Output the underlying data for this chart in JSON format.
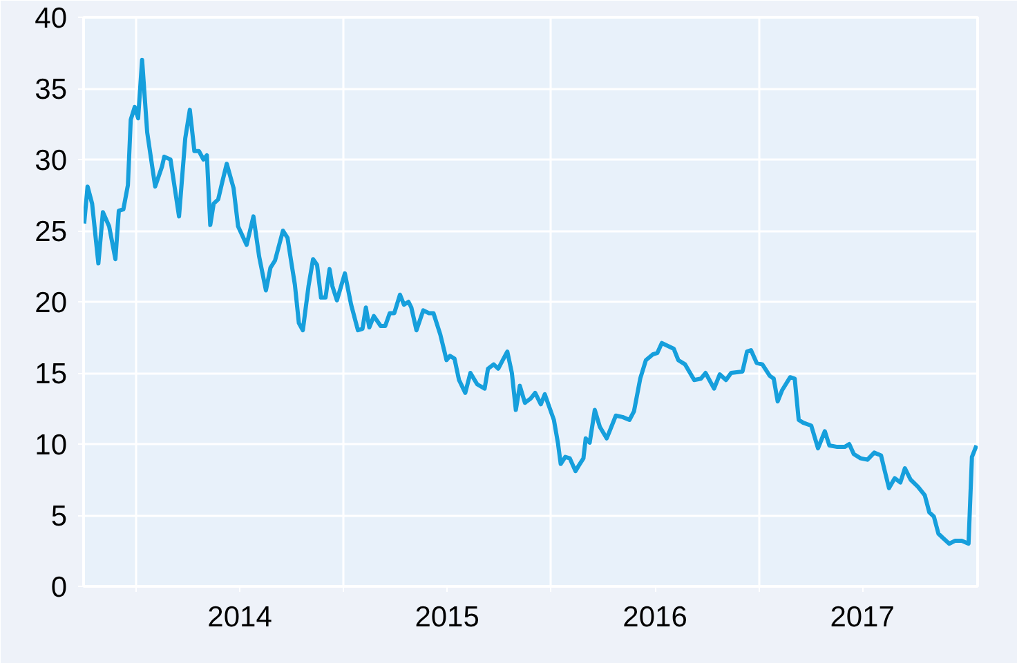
{
  "chart_data": {
    "type": "line",
    "color": "#169fdc",
    "line_style": "solid",
    "grid": true,
    "xlim": [
      "2013-09-30",
      "2018-01-21"
    ],
    "ylim": [
      0,
      40
    ],
    "yticks": [
      0,
      5,
      10,
      15,
      20,
      25,
      30,
      35,
      40
    ],
    "xticks": [
      {
        "value": "2014-01-01",
        "label": null
      },
      {
        "value": "2014-07-02",
        "label": "2014"
      },
      {
        "value": "2015-01-01",
        "label": null
      },
      {
        "value": "2015-07-02",
        "label": "2015"
      },
      {
        "value": "2016-01-01",
        "label": null
      },
      {
        "value": "2016-07-02",
        "label": "2016"
      },
      {
        "value": "2017-01-01",
        "label": null
      },
      {
        "value": "2017-07-02",
        "label": "2017"
      }
    ],
    "x": [
      "2013-10-01",
      "2013-10-07",
      "2013-10-15",
      "2013-10-26",
      "2013-11-03",
      "2013-11-14",
      "2013-11-25",
      "2013-12-01",
      "2013-12-09",
      "2013-12-17",
      "2013-12-22",
      "2013-12-29",
      "2014-01-04",
      "2014-01-11",
      "2014-01-20",
      "2014-02-03",
      "2014-02-15",
      "2014-02-19",
      "2014-03-02",
      "2014-03-17",
      "2014-03-28",
      "2014-04-05",
      "2014-04-13",
      "2014-04-21",
      "2014-04-29",
      "2014-05-05",
      "2014-05-11",
      "2014-05-17",
      "2014-05-25",
      "2014-06-01",
      "2014-06-09",
      "2014-06-21",
      "2014-06-29",
      "2014-07-14",
      "2014-07-26",
      "2014-08-05",
      "2014-08-17",
      "2014-08-25",
      "2014-09-02",
      "2014-09-16",
      "2014-09-24",
      "2014-10-01",
      "2014-10-07",
      "2014-10-14",
      "2014-10-21",
      "2014-10-31",
      "2014-11-08",
      "2014-11-15",
      "2014-11-22",
      "2014-11-30",
      "2014-12-07",
      "2014-12-12",
      "2014-12-20",
      "2015-01-03",
      "2015-01-14",
      "2015-01-26",
      "2015-02-03",
      "2015-02-09",
      "2015-02-15",
      "2015-02-23",
      "2015-03-07",
      "2015-03-15",
      "2015-03-23",
      "2015-03-31",
      "2015-04-10",
      "2015-04-17",
      "2015-04-25",
      "2015-04-30",
      "2015-05-09",
      "2015-05-21",
      "2015-05-31",
      "2015-06-08",
      "2015-06-20",
      "2015-07-01",
      "2015-07-07",
      "2015-07-15",
      "2015-07-23",
      "2015-08-03",
      "2015-08-12",
      "2015-08-24",
      "2015-09-06",
      "2015-09-12",
      "2015-09-22",
      "2015-09-30",
      "2015-10-08",
      "2015-10-16",
      "2015-10-24",
      "2015-10-31",
      "2015-11-07",
      "2015-11-16",
      "2015-11-26",
      "2015-12-04",
      "2015-12-14",
      "2015-12-21",
      "2016-01-06",
      "2016-01-13",
      "2016-01-18",
      "2016-01-26",
      "2016-02-03",
      "2016-02-13",
      "2016-02-19",
      "2016-02-27",
      "2016-03-02",
      "2016-03-09",
      "2016-03-18",
      "2016-03-27",
      "2016-04-08",
      "2016-04-16",
      "2016-04-24",
      "2016-05-06",
      "2016-05-18",
      "2016-05-26",
      "2016-06-06",
      "2016-06-16",
      "2016-06-28",
      "2016-07-06",
      "2016-07-14",
      "2016-08-04",
      "2016-08-12",
      "2016-08-24",
      "2016-09-09",
      "2016-09-21",
      "2016-09-29",
      "2016-10-14",
      "2016-10-24",
      "2016-11-04",
      "2016-11-13",
      "2016-12-03",
      "2016-12-11",
      "2016-12-18",
      "2016-12-28",
      "2017-01-07",
      "2017-01-20",
      "2017-01-27",
      "2017-02-03",
      "2017-02-11",
      "2017-02-25",
      "2017-03-05",
      "2017-03-12",
      "2017-03-20",
      "2017-04-03",
      "2017-04-15",
      "2017-04-27",
      "2017-05-05",
      "2017-05-19",
      "2017-06-01",
      "2017-06-09",
      "2017-06-17",
      "2017-06-29",
      "2017-07-11",
      "2017-07-23",
      "2017-08-04",
      "2017-08-10",
      "2017-08-18",
      "2017-08-28",
      "2017-09-07",
      "2017-09-15",
      "2017-09-25",
      "2017-10-08",
      "2017-10-20",
      "2017-10-28",
      "2017-11-05",
      "2017-11-13",
      "2017-11-21",
      "2017-12-02",
      "2017-12-12",
      "2017-12-24",
      "2018-01-05",
      "2018-01-11",
      "2018-01-19"
    ],
    "values": [
      25.5,
      28.1,
      26.9,
      22.7,
      26.3,
      25.3,
      23.0,
      26.4,
      26.5,
      28.2,
      32.8,
      33.7,
      32.9,
      37.0,
      31.9,
      28.1,
      29.5,
      30.2,
      30.0,
      26.0,
      31.5,
      33.5,
      30.6,
      30.6,
      30.0,
      30.3,
      25.4,
      26.9,
      27.2,
      28.4,
      29.7,
      28.0,
      25.3,
      24.0,
      26.0,
      23.2,
      20.8,
      22.4,
      22.9,
      25.0,
      24.5,
      22.7,
      21.2,
      18.5,
      18.0,
      21.1,
      23.0,
      22.6,
      20.3,
      20.3,
      22.3,
      21.1,
      20.1,
      22.0,
      19.8,
      18.0,
      18.1,
      19.6,
      18.2,
      19.0,
      18.3,
      18.3,
      19.2,
      19.2,
      20.5,
      19.8,
      20.0,
      19.6,
      18.0,
      19.4,
      19.2,
      19.2,
      17.7,
      15.9,
      16.2,
      16.0,
      14.5,
      13.6,
      15.0,
      14.2,
      13.9,
      15.3,
      15.6,
      15.3,
      15.9,
      16.5,
      15.0,
      12.4,
      14.1,
      12.9,
      13.2,
      13.6,
      12.8,
      13.5,
      11.7,
      10.1,
      8.6,
      9.1,
      9.0,
      8.1,
      8.5,
      9.0,
      10.4,
      10.1,
      12.4,
      11.2,
      10.4,
      11.2,
      12.0,
      11.9,
      11.7,
      12.3,
      14.6,
      15.9,
      16.3,
      16.4,
      17.1,
      16.7,
      15.9,
      15.6,
      14.5,
      14.6,
      15.0,
      13.9,
      14.9,
      14.5,
      15.0,
      15.1,
      16.5,
      16.6,
      15.7,
      15.6,
      14.8,
      14.6,
      13.0,
      13.8,
      14.7,
      14.6,
      11.7,
      11.5,
      11.3,
      9.7,
      10.9,
      9.9,
      9.8,
      9.8,
      10.0,
      9.3,
      9.0,
      8.9,
      9.4,
      9.2,
      8.2,
      6.9,
      7.6,
      7.3,
      8.3,
      7.5,
      7.0,
      6.4,
      5.2,
      4.9,
      3.7,
      3.4,
      3.0,
      3.2,
      3.2,
      3.0,
      9.1,
      9.9
    ]
  }
}
